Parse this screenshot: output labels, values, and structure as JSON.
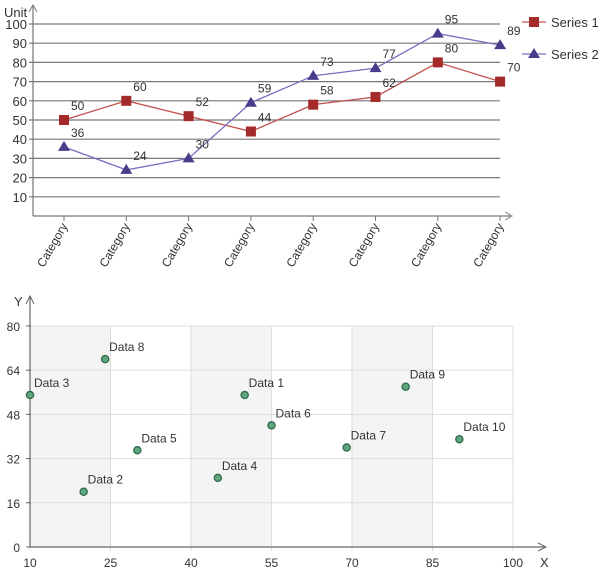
{
  "chart_data": [
    {
      "type": "line",
      "title": "",
      "ylabel": "Unit",
      "xlabel": "",
      "ylim": [
        0,
        100
      ],
      "yticks": [
        10,
        20,
        30,
        40,
        50,
        60,
        70,
        80,
        90,
        100
      ],
      "categories": [
        "Category",
        "Category",
        "Category",
        "Category",
        "Category",
        "Category",
        "Category",
        "Category"
      ],
      "series": [
        {
          "name": "Series 1",
          "marker": "square",
          "color": "#a52a2a",
          "values": [
            50,
            60,
            52,
            44,
            58,
            62,
            80,
            70
          ]
        },
        {
          "name": "Series 2",
          "marker": "triangle",
          "color": "#483d8b",
          "values": [
            36,
            24,
            30,
            59,
            73,
            77,
            95,
            89
          ]
        }
      ],
      "grid": true,
      "legend": "top-right"
    },
    {
      "type": "scatter",
      "xlabel": "X",
      "ylabel": "Y",
      "xlim": [
        10,
        100
      ],
      "ylim": [
        0,
        80
      ],
      "xticks": [
        10,
        25,
        40,
        55,
        70,
        85,
        100
      ],
      "yticks": [
        0,
        16,
        32,
        48,
        64,
        80
      ],
      "grid": true,
      "color": "#2e8b57",
      "points": [
        {
          "label": "Data 1",
          "x": 50,
          "y": 55
        },
        {
          "label": "Data 2",
          "x": 20,
          "y": 20
        },
        {
          "label": "Data 3",
          "x": 10,
          "y": 55
        },
        {
          "label": "Data 4",
          "x": 45,
          "y": 25
        },
        {
          "label": "Data 5",
          "x": 30,
          "y": 35
        },
        {
          "label": "Data 6",
          "x": 55,
          "y": 44
        },
        {
          "label": "Data 7",
          "x": 69,
          "y": 36
        },
        {
          "label": "Data 8",
          "x": 24,
          "y": 68
        },
        {
          "label": "Data 9",
          "x": 80,
          "y": 58
        },
        {
          "label": "Data 10",
          "x": 90,
          "y": 39
        }
      ]
    }
  ]
}
